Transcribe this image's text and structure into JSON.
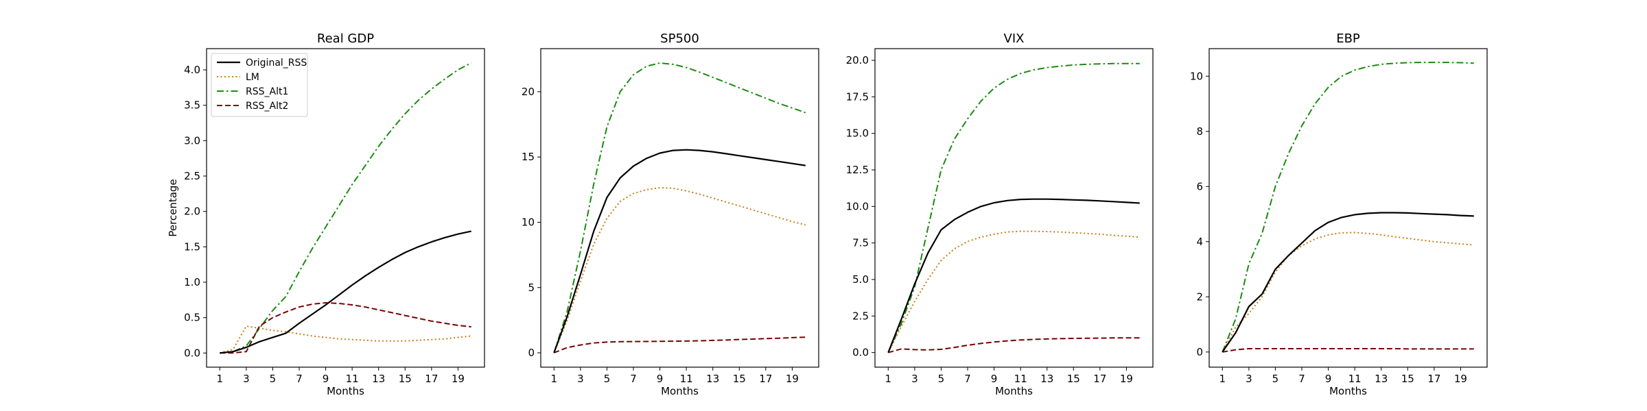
{
  "chart_data": [
    {
      "type": "line",
      "title": "Real GDP",
      "xlabel": "Months",
      "ylabel": "Percentage",
      "xlim": [
        0.0,
        21.0
      ],
      "ylim": [
        -0.2,
        4.3
      ],
      "xticks": [
        1,
        3,
        5,
        7,
        9,
        11,
        13,
        15,
        17,
        19
      ],
      "yticks": [
        0.0,
        0.5,
        1.0,
        1.5,
        2.0,
        2.5,
        3.0,
        3.5,
        4.0
      ],
      "ytick_labels": [
        "0.0",
        "0.5",
        "1.0",
        "1.5",
        "2.0",
        "2.5",
        "3.0",
        "3.5",
        "4.0"
      ],
      "legend": "top-left",
      "x": [
        1,
        2,
        3,
        4,
        5,
        6,
        7,
        8,
        9,
        10,
        11,
        12,
        13,
        14,
        15,
        16,
        17,
        18,
        19,
        20
      ],
      "series": [
        {
          "name": "Original_RSS",
          "values": [
            0.0,
            0.02,
            0.08,
            0.16,
            0.22,
            0.28,
            0.42,
            0.55,
            0.68,
            0.82,
            0.96,
            1.09,
            1.21,
            1.32,
            1.42,
            1.5,
            1.57,
            1.63,
            1.68,
            1.72
          ]
        },
        {
          "name": "LM",
          "values": [
            0.0,
            0.05,
            0.38,
            0.35,
            0.32,
            0.3,
            0.27,
            0.24,
            0.22,
            0.2,
            0.19,
            0.18,
            0.17,
            0.17,
            0.17,
            0.18,
            0.19,
            0.2,
            0.22,
            0.24
          ]
        },
        {
          "name": "RSS_Alt1",
          "values": [
            0.0,
            0.02,
            0.1,
            0.35,
            0.6,
            0.8,
            1.15,
            1.48,
            1.78,
            2.08,
            2.38,
            2.65,
            2.92,
            3.16,
            3.38,
            3.57,
            3.73,
            3.87,
            4.0,
            4.1
          ]
        },
        {
          "name": "RSS_Alt2",
          "values": [
            0.0,
            0.0,
            0.02,
            0.38,
            0.5,
            0.58,
            0.65,
            0.69,
            0.71,
            0.7,
            0.68,
            0.65,
            0.61,
            0.57,
            0.53,
            0.49,
            0.45,
            0.42,
            0.39,
            0.37
          ]
        }
      ]
    },
    {
      "type": "line",
      "title": "SP500",
      "xlabel": "Months",
      "ylabel": "",
      "xlim": [
        0.0,
        21.0
      ],
      "ylim": [
        -1.1,
        23.3
      ],
      "xticks": [
        1,
        3,
        5,
        7,
        9,
        11,
        13,
        15,
        17,
        19
      ],
      "yticks": [
        0,
        5,
        10,
        15,
        20
      ],
      "ytick_labels": [
        "0",
        "5",
        "10",
        "15",
        "20"
      ],
      "x": [
        1,
        2,
        3,
        4,
        5,
        6,
        7,
        8,
        9,
        10,
        11,
        12,
        13,
        14,
        15,
        16,
        17,
        18,
        19,
        20
      ],
      "series": [
        {
          "name": "Original_RSS",
          "values": [
            0.0,
            2.8,
            6.0,
            9.3,
            11.9,
            13.4,
            14.3,
            14.9,
            15.3,
            15.5,
            15.55,
            15.5,
            15.4,
            15.25,
            15.1,
            14.95,
            14.8,
            14.65,
            14.5,
            14.35
          ]
        },
        {
          "name": "LM",
          "values": [
            0.0,
            2.5,
            5.5,
            8.3,
            10.3,
            11.6,
            12.2,
            12.5,
            12.65,
            12.6,
            12.4,
            12.15,
            11.85,
            11.55,
            11.25,
            10.95,
            10.65,
            10.35,
            10.05,
            9.8
          ]
        },
        {
          "name": "RSS_Alt1",
          "values": [
            0.0,
            3.2,
            7.8,
            12.9,
            17.3,
            20.0,
            21.3,
            21.95,
            22.2,
            22.1,
            21.85,
            21.5,
            21.1,
            20.7,
            20.3,
            19.9,
            19.5,
            19.1,
            18.75,
            18.4
          ]
        },
        {
          "name": "RSS_Alt2",
          "values": [
            0.0,
            0.4,
            0.6,
            0.75,
            0.82,
            0.85,
            0.86,
            0.87,
            0.88,
            0.89,
            0.9,
            0.92,
            0.95,
            0.98,
            1.02,
            1.05,
            1.09,
            1.12,
            1.16,
            1.2
          ]
        }
      ]
    },
    {
      "type": "line",
      "title": "VIX",
      "xlabel": "Months",
      "ylabel": "",
      "xlim": [
        0.0,
        21.0
      ],
      "ylim": [
        -1.0,
        20.8
      ],
      "xticks": [
        1,
        3,
        5,
        7,
        9,
        11,
        13,
        15,
        17,
        19
      ],
      "yticks": [
        0.0,
        2.5,
        5.0,
        7.5,
        10.0,
        12.5,
        15.0,
        17.5,
        20.0
      ],
      "ytick_labels": [
        "0.0",
        "2.5",
        "5.0",
        "7.5",
        "10.0",
        "12.5",
        "15.0",
        "17.5",
        "20.0"
      ],
      "x": [
        1,
        2,
        3,
        4,
        5,
        6,
        7,
        8,
        9,
        10,
        11,
        12,
        13,
        14,
        15,
        16,
        17,
        18,
        19,
        20
      ],
      "series": [
        {
          "name": "Original_RSS",
          "values": [
            0.0,
            2.3,
            4.7,
            6.8,
            8.4,
            9.1,
            9.6,
            10.0,
            10.25,
            10.4,
            10.48,
            10.5,
            10.5,
            10.48,
            10.45,
            10.42,
            10.38,
            10.33,
            10.28,
            10.23
          ]
        },
        {
          "name": "LM",
          "values": [
            0.0,
            1.8,
            3.5,
            5.0,
            6.3,
            7.1,
            7.6,
            7.9,
            8.1,
            8.25,
            8.3,
            8.3,
            8.28,
            8.25,
            8.2,
            8.15,
            8.1,
            8.03,
            7.97,
            7.9
          ]
        },
        {
          "name": "RSS_Alt1",
          "values": [
            0.0,
            2.0,
            4.5,
            8.5,
            12.5,
            14.6,
            16.0,
            17.2,
            18.1,
            18.7,
            19.1,
            19.35,
            19.5,
            19.6,
            19.68,
            19.73,
            19.76,
            19.78,
            19.78,
            19.78
          ]
        },
        {
          "name": "RSS_Alt2",
          "values": [
            0.0,
            0.25,
            0.2,
            0.18,
            0.22,
            0.35,
            0.5,
            0.62,
            0.72,
            0.8,
            0.86,
            0.9,
            0.93,
            0.95,
            0.97,
            0.98,
            0.99,
            1.0,
            1.0,
            1.0
          ]
        }
      ]
    },
    {
      "type": "line",
      "title": "EBP",
      "xlabel": "Months",
      "ylabel": "",
      "xlim": [
        0.0,
        21.0
      ],
      "ylim": [
        -0.55,
        11.0
      ],
      "xticks": [
        1,
        3,
        5,
        7,
        9,
        11,
        13,
        15,
        17,
        19
      ],
      "yticks": [
        0,
        2,
        4,
        6,
        8,
        10
      ],
      "ytick_labels": [
        "0",
        "2",
        "4",
        "6",
        "8",
        "10"
      ],
      "x": [
        1,
        2,
        3,
        4,
        5,
        6,
        7,
        8,
        9,
        10,
        11,
        12,
        13,
        14,
        15,
        16,
        17,
        18,
        19,
        20
      ],
      "series": [
        {
          "name": "Original_RSS",
          "values": [
            0.0,
            0.7,
            1.65,
            2.1,
            3.0,
            3.5,
            3.95,
            4.4,
            4.7,
            4.88,
            4.98,
            5.03,
            5.05,
            5.05,
            5.04,
            5.02,
            5.0,
            4.98,
            4.95,
            4.93
          ]
        },
        {
          "name": "LM",
          "values": [
            0.0,
            0.9,
            1.4,
            2.0,
            2.9,
            3.5,
            3.85,
            4.1,
            4.25,
            4.32,
            4.33,
            4.3,
            4.25,
            4.18,
            4.12,
            4.06,
            4.0,
            3.96,
            3.92,
            3.88
          ]
        },
        {
          "name": "RSS_Alt1",
          "values": [
            0.0,
            1.2,
            3.2,
            4.3,
            6.0,
            7.2,
            8.2,
            9.0,
            9.6,
            10.0,
            10.22,
            10.35,
            10.43,
            10.47,
            10.49,
            10.5,
            10.5,
            10.5,
            10.49,
            10.47
          ]
        },
        {
          "name": "RSS_Alt2",
          "values": [
            0.0,
            0.08,
            0.12,
            0.12,
            0.12,
            0.12,
            0.12,
            0.12,
            0.12,
            0.12,
            0.12,
            0.12,
            0.12,
            0.12,
            0.11,
            0.11,
            0.11,
            0.11,
            0.11,
            0.11
          ]
        }
      ]
    }
  ],
  "legend_entries": [
    {
      "name": "Original_RSS",
      "color": "#000000",
      "style": "solid"
    },
    {
      "name": "LM",
      "color": "#c87a10",
      "style": "dotted"
    },
    {
      "name": "RSS_Alt1",
      "color": "#1a8a10",
      "style": "dashdot"
    },
    {
      "name": "RSS_Alt2",
      "color": "#7a0000",
      "style": "dashed"
    }
  ]
}
